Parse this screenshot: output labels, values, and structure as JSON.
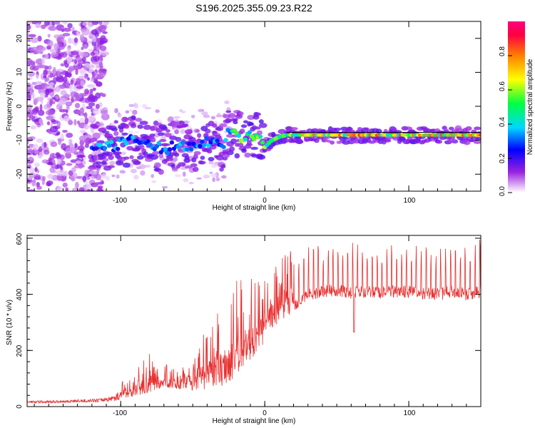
{
  "title": "S196.2025.355.09.23.R22",
  "chart_data": [
    {
      "type": "heatmap",
      "name": "spectrogram",
      "xlabel": "Height of straight line (km)",
      "ylabel": "Frequency (Hz)",
      "xlim": [
        -165,
        150
      ],
      "ylim": [
        -25,
        25
      ],
      "x_ticks": [
        -100,
        0,
        100
      ],
      "y_ticks": [
        -20,
        -10,
        0,
        10,
        20
      ],
      "x_tick_labels": [
        "-100",
        "0",
        "100"
      ],
      "y_tick_labels": [
        "-20",
        "-10",
        "0",
        "10",
        "20"
      ],
      "colorbar": {
        "label": "Normalized spectral amplitude",
        "range": [
          0,
          1
        ],
        "ticks": [
          0.0,
          0.2,
          0.4,
          0.6,
          0.8
        ],
        "tick_labels": [
          "0.0",
          "0.2",
          "0.4",
          "0.6",
          "0.8"
        ],
        "colors": [
          "#ffffff",
          "#9a22e0",
          "#0000ff",
          "#00d8ff",
          "#00ff40",
          "#ffff00",
          "#ff8000",
          "#ff0040",
          "#ff0080"
        ]
      },
      "reference_line": {
        "x": [
          15,
          150
        ],
        "frequency": -8.5
      },
      "ridge": {
        "x": [
          -120,
          -110,
          -100,
          -90,
          -80,
          -70,
          -60,
          -50,
          -40,
          -30,
          -25,
          -20,
          -15,
          -10,
          -5,
          0,
          5,
          10,
          15,
          30,
          50,
          80,
          100,
          120,
          150
        ],
        "frequency": [
          -12,
          -12,
          -11,
          -10,
          -11,
          -13,
          -11,
          -12,
          -10,
          -12,
          -7,
          -8,
          -9.5,
          -9,
          -8.5,
          -12,
          -10,
          -9,
          -8.5,
          -8.5,
          -8.5,
          -8.5,
          -8.5,
          -8.5,
          -8.5
        ]
      }
    },
    {
      "type": "line",
      "name": "snr",
      "xlabel": "Height of straight line (km)",
      "ylabel": "SNR (10 * v/v)",
      "xlim": [
        -165,
        150
      ],
      "ylim": [
        0,
        610
      ],
      "x_ticks": [
        -100,
        0,
        100
      ],
      "y_ticks": [
        0,
        200,
        400,
        600
      ],
      "x_tick_labels": [
        "-100",
        "0",
        "100"
      ],
      "y_tick_labels": [
        "0",
        "200",
        "400",
        "600"
      ],
      "color": "#e83030",
      "series": [
        {
          "name": "SNR",
          "x": [
            -165,
            -150,
            -130,
            -115,
            -105,
            -100,
            -90,
            -80,
            -70,
            -60,
            -50,
            -40,
            -30,
            -20,
            -10,
            -5,
            0,
            5,
            10,
            15,
            20,
            25,
            30,
            40,
            50,
            60,
            70,
            80,
            90,
            100,
            110,
            120,
            130,
            140,
            150
          ],
          "baseline": [
            15,
            15,
            18,
            20,
            25,
            35,
            50,
            65,
            80,
            70,
            80,
            90,
            110,
            150,
            200,
            230,
            260,
            300,
            330,
            350,
            360,
            380,
            400,
            410,
            415,
            405,
            410,
            405,
            410,
            410,
            405,
            400,
            410,
            400,
            410
          ],
          "peak": [
            30,
            30,
            35,
            40,
            60,
            90,
            130,
            190,
            160,
            140,
            220,
            280,
            370,
            450,
            480,
            450,
            470,
            510,
            540,
            560,
            570,
            560,
            580,
            570,
            575,
            600,
            580,
            560,
            585,
            570,
            575,
            560,
            580,
            590,
            600
          ]
        }
      ]
    }
  ]
}
